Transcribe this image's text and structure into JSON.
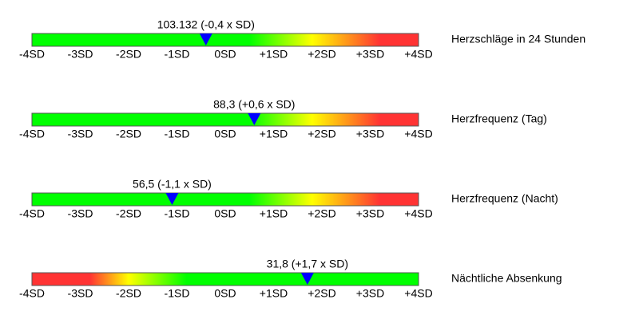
{
  "chart_data": [
    {
      "type": "gauge",
      "label": "Herzschläge in 24 Stunden",
      "value": -0.4,
      "value_label": "103.132 (-0,4 x SD)",
      "xlim": [
        -4,
        4
      ],
      "xticks": [
        {
          "value": -4,
          "label": "-4SD"
        },
        {
          "value": -3,
          "label": "-3SD"
        },
        {
          "value": -2,
          "label": "-2SD"
        },
        {
          "value": -1,
          "label": "-1SD"
        },
        {
          "value": 0,
          "label": "0SD"
        },
        {
          "value": 1,
          "label": "+1SD"
        },
        {
          "value": 2,
          "label": "+2SD"
        },
        {
          "value": 3,
          "label": "+3SD"
        },
        {
          "value": 4,
          "label": "+4SD"
        }
      ],
      "gradient": [
        {
          "value": 0.5,
          "color": "#00ff00"
        },
        {
          "value": 1.8,
          "color": "#ffff00"
        },
        {
          "value": 3.2,
          "color": "#ff3333"
        }
      ],
      "marker_color": "#0000ff"
    },
    {
      "type": "gauge",
      "label": "Herzfrequenz (Tag)",
      "value": 0.6,
      "value_label": "88,3 (+0,6 x SD)",
      "xlim": [
        -4,
        4
      ],
      "xticks": [
        {
          "value": -4,
          "label": "-4SD"
        },
        {
          "value": -3,
          "label": "-3SD"
        },
        {
          "value": -2,
          "label": "-2SD"
        },
        {
          "value": -1,
          "label": "-1SD"
        },
        {
          "value": 0,
          "label": "0SD"
        },
        {
          "value": 1,
          "label": "+1SD"
        },
        {
          "value": 2,
          "label": "+2SD"
        },
        {
          "value": 3,
          "label": "+3SD"
        },
        {
          "value": 4,
          "label": "+4SD"
        }
      ],
      "gradient": [
        {
          "value": 0.5,
          "color": "#00ff00"
        },
        {
          "value": 1.8,
          "color": "#ffff00"
        },
        {
          "value": 3.2,
          "color": "#ff3333"
        }
      ],
      "marker_color": "#0000ff"
    },
    {
      "type": "gauge",
      "label": "Herzfrequenz (Nacht)",
      "value": -1.1,
      "value_label": "56,5 (-1,1 x SD)",
      "xlim": [
        -4,
        4
      ],
      "xticks": [
        {
          "value": -4,
          "label": "-4SD"
        },
        {
          "value": -3,
          "label": "-3SD"
        },
        {
          "value": -2,
          "label": "-2SD"
        },
        {
          "value": -1,
          "label": "-1SD"
        },
        {
          "value": 0,
          "label": "0SD"
        },
        {
          "value": 1,
          "label": "+1SD"
        },
        {
          "value": 2,
          "label": "+2SD"
        },
        {
          "value": 3,
          "label": "+3SD"
        },
        {
          "value": 4,
          "label": "+4SD"
        }
      ],
      "gradient": [
        {
          "value": 0.5,
          "color": "#00ff00"
        },
        {
          "value": 1.8,
          "color": "#ffff00"
        },
        {
          "value": 3.2,
          "color": "#ff3333"
        }
      ],
      "marker_color": "#0000ff"
    },
    {
      "type": "gauge",
      "label": "Nächtliche Absenkung",
      "value": 1.7,
      "value_label": "31,8 (+1,7 x SD)",
      "xlim": [
        -4,
        4
      ],
      "xticks": [
        {
          "value": -4,
          "label": "-4SD"
        },
        {
          "value": -3,
          "label": "-3SD"
        },
        {
          "value": -2,
          "label": "-2SD"
        },
        {
          "value": -1,
          "label": "-1SD"
        },
        {
          "value": 0,
          "label": "0SD"
        },
        {
          "value": 1,
          "label": "+1SD"
        },
        {
          "value": 2,
          "label": "+2SD"
        },
        {
          "value": 3,
          "label": "+3SD"
        },
        {
          "value": 4,
          "label": "+4SD"
        }
      ],
      "gradient": [
        {
          "value": -2.8,
          "color": "#ff3333"
        },
        {
          "value": -2,
          "color": "#ffff00"
        },
        {
          "value": -0.8,
          "color": "#00ff00"
        }
      ],
      "marker_color": "#0000ff"
    }
  ]
}
